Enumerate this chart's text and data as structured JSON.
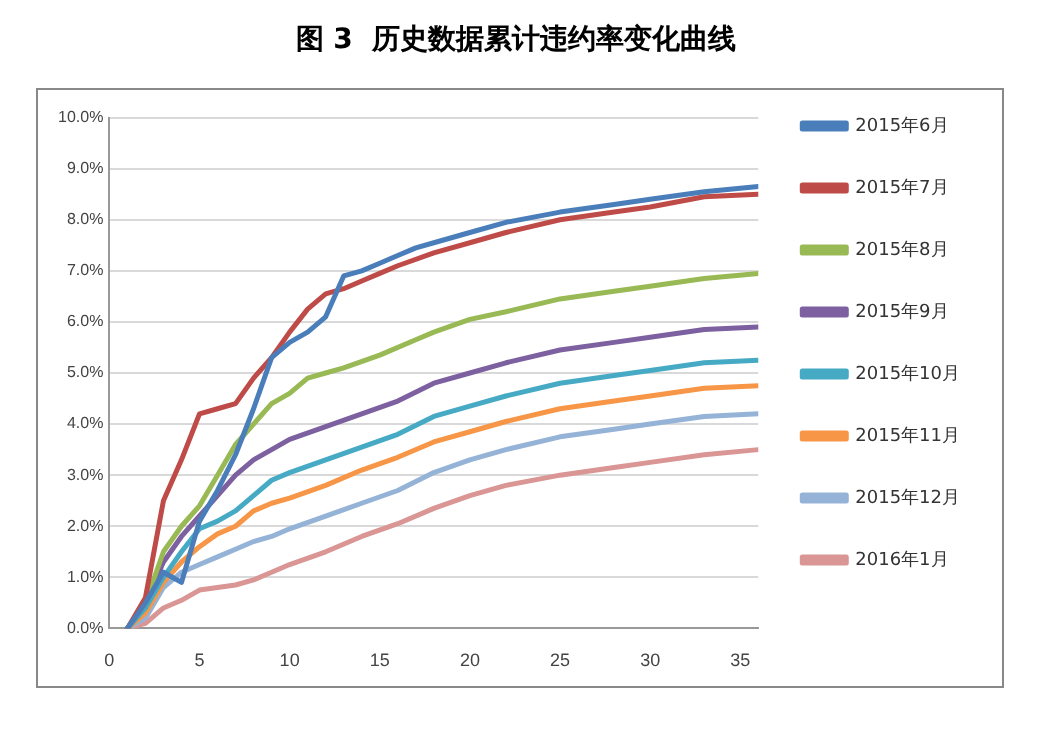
{
  "chart_data": {
    "type": "line",
    "title": "图 3  历史数据累计违约率变化曲线",
    "xlim": [
      0,
      36
    ],
    "xticks": [
      0,
      5,
      10,
      15,
      20,
      25,
      30,
      35
    ],
    "ylim": [
      0,
      10
    ],
    "yticks": [
      {
        "value": 0,
        "label": "0.0%"
      },
      {
        "value": 1,
        "label": "1.0%"
      },
      {
        "value": 2,
        "label": "2.0%"
      },
      {
        "value": 3,
        "label": "3.0%"
      },
      {
        "value": 4,
        "label": "4.0%"
      },
      {
        "value": 5,
        "label": "5.0%"
      },
      {
        "value": 6,
        "label": "6.0%"
      },
      {
        "value": 7,
        "label": "7.0%"
      },
      {
        "value": 8,
        "label": "8.0%"
      },
      {
        "value": 9,
        "label": "9.0%"
      },
      {
        "value": 10,
        "label": "10.0%"
      }
    ],
    "grid": "y",
    "legend": "right",
    "marker": "none",
    "line_style": "solid",
    "series": [
      {
        "name": "2015年6月",
        "color": "#4a7ebb",
        "x": [
          1,
          2,
          3,
          4,
          5,
          6,
          7,
          8,
          9,
          10,
          11,
          12,
          13,
          14,
          15,
          16,
          17,
          18,
          20,
          22,
          25,
          28,
          30,
          33,
          36
        ],
        "values": [
          0,
          0.5,
          1.1,
          0.9,
          2.1,
          2.7,
          3.4,
          4.3,
          5.3,
          5.6,
          5.8,
          6.1,
          6.9,
          7.0,
          7.15,
          7.3,
          7.45,
          7.55,
          7.75,
          7.95,
          8.15,
          8.3,
          8.4,
          8.55,
          8.65
        ]
      },
      {
        "name": "2015年7月",
        "color": "#be4b48",
        "x": [
          1,
          2,
          3,
          4,
          5,
          6,
          7,
          8,
          9,
          10,
          11,
          12,
          13,
          14,
          15,
          16,
          18,
          20,
          22,
          25,
          28,
          30,
          33,
          36
        ],
        "values": [
          0,
          0.6,
          2.5,
          3.3,
          4.2,
          4.3,
          4.4,
          4.9,
          5.3,
          5.8,
          6.25,
          6.55,
          6.65,
          6.8,
          6.95,
          7.1,
          7.35,
          7.55,
          7.75,
          8.0,
          8.15,
          8.25,
          8.45,
          8.5
        ]
      },
      {
        "name": "2015年8月",
        "color": "#98b954",
        "x": [
          1,
          2,
          3,
          4,
          5,
          6,
          7,
          8,
          9,
          10,
          11,
          12,
          13,
          15,
          17,
          18,
          20,
          22,
          25,
          28,
          30,
          33,
          36
        ],
        "values": [
          0,
          0.5,
          1.5,
          2.0,
          2.4,
          3.0,
          3.6,
          4.0,
          4.4,
          4.6,
          4.9,
          5.0,
          5.1,
          5.35,
          5.65,
          5.8,
          6.05,
          6.2,
          6.45,
          6.6,
          6.7,
          6.85,
          6.95
        ]
      },
      {
        "name": "2015年9月",
        "color": "#7d60a0",
        "x": [
          1,
          2,
          3,
          4,
          5,
          6,
          7,
          8,
          9,
          10,
          12,
          14,
          16,
          18,
          20,
          22,
          25,
          28,
          30,
          33,
          36
        ],
        "values": [
          0,
          0.5,
          1.3,
          1.8,
          2.2,
          2.6,
          3.0,
          3.3,
          3.5,
          3.7,
          3.95,
          4.2,
          4.45,
          4.8,
          5.0,
          5.2,
          5.45,
          5.6,
          5.7,
          5.85,
          5.9
        ]
      },
      {
        "name": "2015年10月",
        "color": "#46aac5",
        "x": [
          1,
          2,
          3,
          4,
          5,
          6,
          7,
          8,
          9,
          10,
          12,
          14,
          16,
          18,
          20,
          22,
          25,
          28,
          30,
          33,
          36
        ],
        "values": [
          0,
          0.4,
          1.0,
          1.5,
          1.95,
          2.1,
          2.3,
          2.6,
          2.9,
          3.05,
          3.3,
          3.55,
          3.8,
          4.15,
          4.35,
          4.55,
          4.8,
          4.95,
          5.05,
          5.2,
          5.25
        ]
      },
      {
        "name": "2015年11月",
        "color": "#f79646",
        "x": [
          1,
          2,
          3,
          4,
          5,
          6,
          7,
          8,
          9,
          10,
          12,
          14,
          16,
          18,
          20,
          22,
          25,
          28,
          30,
          33,
          36
        ],
        "values": [
          0,
          0.3,
          0.9,
          1.3,
          1.6,
          1.85,
          2.0,
          2.3,
          2.45,
          2.55,
          2.8,
          3.1,
          3.35,
          3.65,
          3.85,
          4.05,
          4.3,
          4.45,
          4.55,
          4.7,
          4.75
        ]
      },
      {
        "name": "2015年12月",
        "color": "#95b3d7",
        "x": [
          1,
          2,
          3,
          4,
          5,
          6,
          7,
          8,
          9,
          10,
          12,
          14,
          16,
          18,
          20,
          22,
          25,
          28,
          30,
          33,
          36
        ],
        "values": [
          0,
          0.2,
          0.8,
          1.1,
          1.25,
          1.4,
          1.55,
          1.7,
          1.8,
          1.95,
          2.2,
          2.45,
          2.7,
          3.05,
          3.3,
          3.5,
          3.75,
          3.9,
          4.0,
          4.15,
          4.2
        ]
      },
      {
        "name": "2016年1月",
        "color": "#d99694",
        "x": [
          1,
          2,
          3,
          4,
          5,
          6,
          7,
          8,
          9,
          10,
          12,
          14,
          16,
          18,
          20,
          22,
          25,
          28,
          30,
          33,
          36
        ],
        "values": [
          0,
          0.1,
          0.4,
          0.55,
          0.75,
          0.8,
          0.85,
          0.95,
          1.1,
          1.25,
          1.5,
          1.8,
          2.05,
          2.35,
          2.6,
          2.8,
          3.0,
          3.15,
          3.25,
          3.4,
          3.5
        ]
      }
    ]
  }
}
